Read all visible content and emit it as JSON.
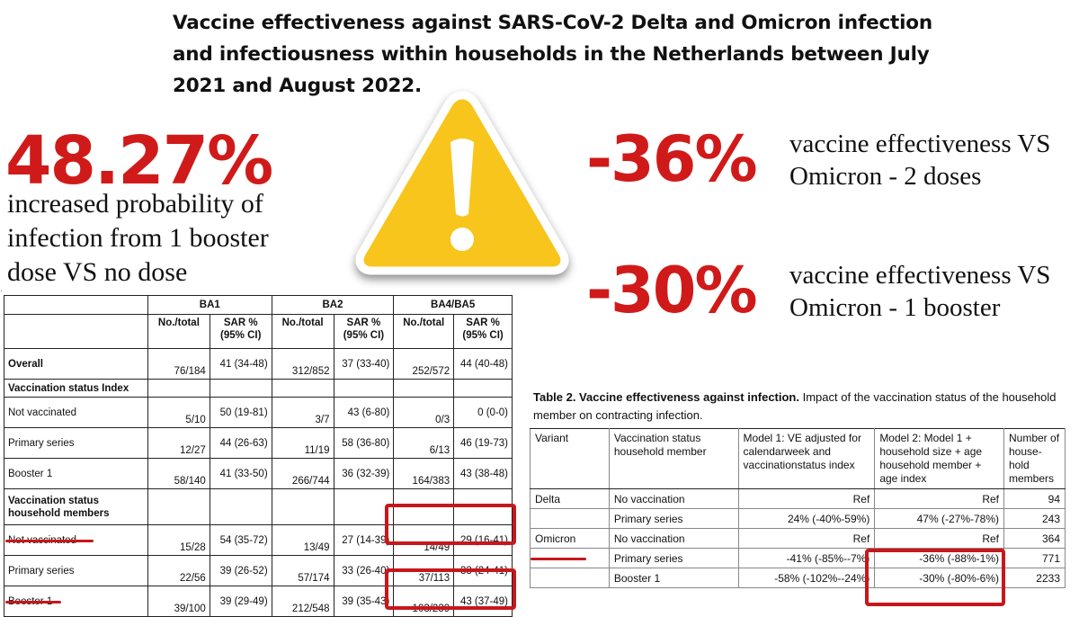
{
  "title": "Vaccine effectiveness against SARS-CoV-2 Delta and Omicron infection and infectiousness within households in the Netherlands between July 2021 and August 2022.",
  "stats": [
    {
      "value": "48.27%",
      "text": "increased probability of infection from 1 booster dose VS no dose"
    },
    {
      "value": "-36%",
      "text": "vaccine effectiveness VS Omicron - 2 doses"
    },
    {
      "value": "-30%",
      "text": "vaccine effectiveness VS Omicron - 1 booster"
    }
  ],
  "warning_icon": "warning-triangle-icon",
  "colors": {
    "accent_red": "#d01a1a",
    "warning_yellow": "#f8c51c"
  },
  "left_table": {
    "groups": [
      "BA1",
      "BA2",
      "BA4/BA5"
    ],
    "subheaders": [
      "No./total",
      "SAR % (95% CI)"
    ],
    "rows": [
      {
        "type": "data",
        "bold": true,
        "label": "Overall",
        "cells": [
          "76/184",
          "41 (34-48)",
          "312/852",
          "37 (33-40)",
          "252/572",
          "44 (40-48)"
        ]
      },
      {
        "type": "section",
        "label": "Vaccination status Index"
      },
      {
        "type": "data",
        "label": "Not vaccinated",
        "cells": [
          "5/10",
          "50 (19-81)",
          "3/7",
          "43 (6-80)",
          "0/3",
          "0 (0-0)"
        ]
      },
      {
        "type": "data",
        "label": "Primary series",
        "cells": [
          "12/27",
          "44 (26-63)",
          "11/19",
          "58 (36-80)",
          "6/13",
          "46 (19-73)"
        ]
      },
      {
        "type": "data",
        "label": "Booster 1",
        "cells": [
          "58/140",
          "41 (33-50)",
          "266/744",
          "36 (32-39)",
          "164/383",
          "43 (38-48)"
        ]
      },
      {
        "type": "section2",
        "label": "Vaccination status household members"
      },
      {
        "type": "data",
        "label": "Not vaccinated",
        "cells": [
          "15/28",
          "54 (35-72)",
          "13/49",
          "27 (14-39)",
          "14/49",
          "29 (16-41)"
        ]
      },
      {
        "type": "data",
        "label": "Primary series",
        "cells": [
          "22/56",
          "39 (26-52)",
          "57/174",
          "33 (26-40)",
          "37/113",
          "33 (24-41)"
        ]
      },
      {
        "type": "data",
        "label": "Booster 1",
        "cells": [
          "39/100",
          "39 (29-49)",
          "212/548",
          "39 (35-43)",
          "103/239",
          "43 (37-49)"
        ]
      }
    ]
  },
  "right_table": {
    "caption_bold": "Table 2. Vaccine effectiveness against infection.",
    "caption_rest": " Impact of the vaccination status of the household member on contracting infection.",
    "headers": [
      "Variant",
      "Vaccination status household member",
      "Model 1: VE adjusted for calendarweek and vaccinationstatus index",
      "Model 2: Model 1 + household size + age household member + age index",
      "Number of house-hold members"
    ],
    "rows": [
      {
        "variant": "Delta",
        "status": "No vaccination",
        "m1": "Ref",
        "m2": "Ref",
        "n": "94"
      },
      {
        "variant": "",
        "status": "Primary series",
        "m1": "24% (-40%-59%)",
        "m2": "47% (-27%-78%)",
        "n": "243"
      },
      {
        "variant": "Omicron",
        "status": "No vaccination",
        "m1": "Ref",
        "m2": "Ref",
        "n": "364"
      },
      {
        "variant": "",
        "status": "Primary series",
        "m1": "-41% (-85%--7%)",
        "m2": "-36% (-88%-1%)",
        "n": "771"
      },
      {
        "variant": "",
        "status": "Booster 1",
        "m1": "-58% (-102%--24%)",
        "m2": "-30% (-80%-6%)",
        "n": "2233"
      }
    ]
  }
}
